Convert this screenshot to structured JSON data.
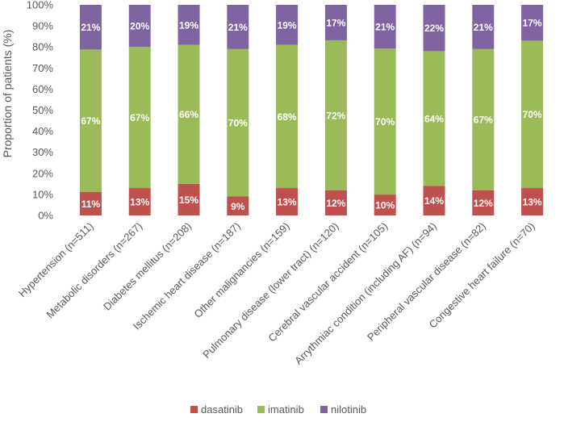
{
  "chart_data": {
    "type": "bar",
    "stacked": true,
    "title": "",
    "xlabel": "",
    "ylabel": "Proportion of patients (%)",
    "ylim": [
      0,
      100
    ],
    "yticks": [
      "0%",
      "10%",
      "20%",
      "30%",
      "40%",
      "50%",
      "60%",
      "70%",
      "80%",
      "90%",
      "100%"
    ],
    "yticks_values": [
      0,
      10,
      20,
      30,
      40,
      50,
      60,
      70,
      80,
      90,
      100
    ],
    "categories": [
      "Hypertension (n=511)",
      "Metabolic disorders (n=267)",
      "Diabetes mellitus (n=208)",
      "Ischemic heart disease (n=187)",
      "Other malignancies (n=159)",
      "Pulmonary disease (lower tract) (n=120)",
      "Cerebral vascular accident (n=105)",
      "Arrythmiac condition (including AF) (n=94)",
      "Peripheral vascular disease (n=82)",
      "Congestive heart failure (n=70)"
    ],
    "series": [
      {
        "name": "dasatinib",
        "color": "#c0504d",
        "values": [
          11,
          13,
          15,
          9,
          13,
          12,
          10,
          14,
          12,
          13
        ],
        "labels": [
          "11%",
          "13%",
          "15%",
          "9%",
          "13%",
          "12%",
          "10%",
          "14%",
          "12%",
          "13%"
        ]
      },
      {
        "name": "imatinib",
        "color": "#9bbb59",
        "values": [
          67,
          67,
          66,
          70,
          68,
          72,
          70,
          64,
          67,
          70
        ],
        "labels": [
          "67%",
          "67%",
          "66%",
          "70%",
          "68%",
          "72%",
          "70%",
          "64%",
          "67%",
          "70%"
        ]
      },
      {
        "name": "nilotinib",
        "color": "#8064a2",
        "values": [
          21,
          20,
          19,
          21,
          19,
          17,
          21,
          22,
          21,
          17
        ],
        "labels": [
          "21%",
          "20%",
          "19%",
          "21%",
          "19%",
          "17%",
          "21%",
          "22%",
          "21%",
          "17%"
        ]
      }
    ],
    "legend_position": "bottom",
    "grid": false
  }
}
